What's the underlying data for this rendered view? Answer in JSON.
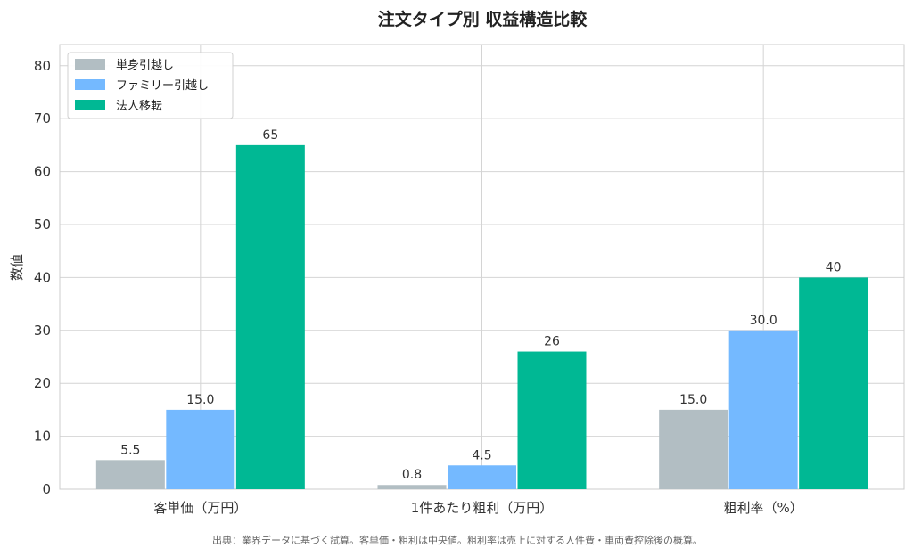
{
  "chart_data": {
    "type": "bar",
    "title": "注文タイプ別 収益構造比較",
    "xlabel": "",
    "ylabel": "数値",
    "categories": [
      "客単価（万円）",
      "1件あたり粗利（万円）",
      "粗利率（%）"
    ],
    "series": [
      {
        "name": "単身引越し",
        "color": "#b2bec3",
        "values": [
          5.5,
          0.8,
          15.0
        ],
        "labels": [
          "5.5",
          "0.8",
          "15.0"
        ]
      },
      {
        "name": "ファミリー引越し",
        "color": "#74b9ff",
        "values": [
          15.0,
          4.5,
          30.0
        ],
        "labels": [
          "15.0",
          "4.5",
          "30.0"
        ]
      },
      {
        "name": "法人移転",
        "color": "#00b894",
        "values": [
          65,
          26,
          40
        ],
        "labels": [
          "65",
          "26",
          "40"
        ]
      }
    ],
    "ylim": [
      0,
      84
    ],
    "yticks": [
      0,
      10,
      20,
      30,
      40,
      50,
      60,
      70,
      80
    ],
    "grid": true,
    "legend_position": "top-left",
    "caption": "出典：業界データに基づく試算。客単価・粗利は中央値。粗利率は売上に対する人件費・車両費控除後の概算。"
  }
}
